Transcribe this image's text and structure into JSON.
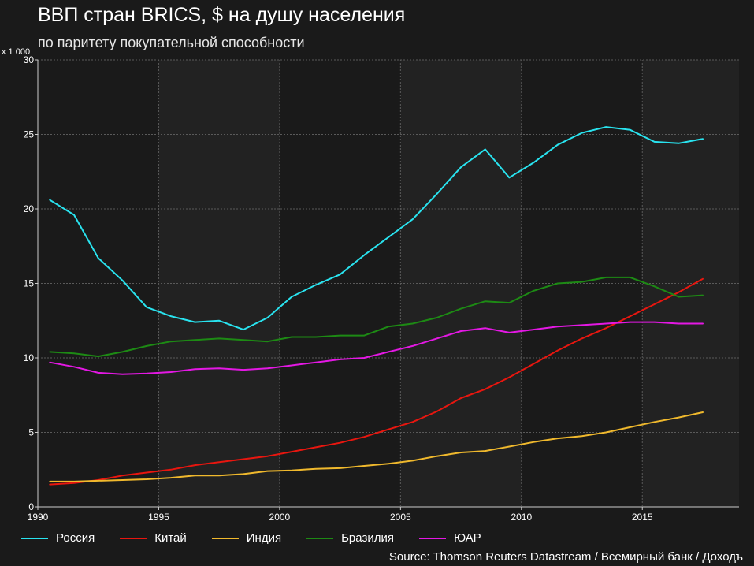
{
  "title": "ВВП стран BRICS, $ на душу населения",
  "subtitle": "по паритету покупательной способности",
  "source": "Source: Thomson Reuters Datastream / Всемирный банк / Доходъ",
  "colors": {
    "background": "#1a1a1a",
    "band": "#222222",
    "grid": "#5a5a5a",
    "axis": "#cccccc"
  },
  "chart_data": {
    "type": "line",
    "unit_label": "x 1 000",
    "xlim": [
      1990,
      2019
    ],
    "ylim": [
      0,
      30
    ],
    "x_ticks": [
      1990,
      1995,
      2000,
      2005,
      2010,
      2015
    ],
    "y_ticks": [
      0,
      5,
      10,
      15,
      20,
      25,
      30
    ],
    "grid": true,
    "legend_position": "bottom",
    "x": [
      1990.5,
      1991.5,
      1992.5,
      1993.5,
      1994.5,
      1995.5,
      1996.5,
      1997.5,
      1998.5,
      1999.5,
      2000.5,
      2001.5,
      2002.5,
      2003.5,
      2004.5,
      2005.5,
      2006.5,
      2007.5,
      2008.5,
      2009.5,
      2010.5,
      2011.5,
      2012.5,
      2013.5,
      2014.5,
      2015.5,
      2016.5,
      2017.5
    ],
    "series": [
      {
        "name": "Россия",
        "color": "#29e3ef",
        "values": [
          20.6,
          19.6,
          16.7,
          15.2,
          13.4,
          12.8,
          12.4,
          12.5,
          11.9,
          12.7,
          14.1,
          14.9,
          15.6,
          16.9,
          18.1,
          19.3,
          21.0,
          22.8,
          24.0,
          22.1,
          23.1,
          24.3,
          25.1,
          25.5,
          25.3,
          24.5,
          24.4,
          24.7
        ]
      },
      {
        "name": "Китай",
        "color": "#e8160f",
        "values": [
          1.5,
          1.6,
          1.8,
          2.1,
          2.3,
          2.5,
          2.8,
          3.0,
          3.2,
          3.4,
          3.7,
          4.0,
          4.3,
          4.7,
          5.2,
          5.7,
          6.4,
          7.3,
          7.9,
          8.7,
          9.6,
          10.5,
          11.3,
          12.0,
          12.8,
          13.6,
          14.4,
          15.3
        ]
      },
      {
        "name": "Индия",
        "color": "#f0b92d",
        "values": [
          1.7,
          1.7,
          1.75,
          1.8,
          1.85,
          1.95,
          2.1,
          2.1,
          2.2,
          2.4,
          2.45,
          2.55,
          2.6,
          2.75,
          2.9,
          3.1,
          3.4,
          3.65,
          3.75,
          4.05,
          4.35,
          4.6,
          4.75,
          5.0,
          5.35,
          5.7,
          6.0,
          6.35
        ]
      },
      {
        "name": "Бразилия",
        "color": "#1d8a14",
        "values": [
          10.4,
          10.3,
          10.1,
          10.4,
          10.8,
          11.1,
          11.2,
          11.3,
          11.2,
          11.1,
          11.4,
          11.4,
          11.5,
          11.5,
          12.1,
          12.3,
          12.7,
          13.3,
          13.8,
          13.7,
          14.5,
          15.0,
          15.1,
          15.4,
          15.4,
          14.8,
          14.1,
          14.2
        ]
      },
      {
        "name": "ЮАР",
        "color": "#e418e4",
        "values": [
          9.7,
          9.4,
          9.0,
          8.9,
          8.95,
          9.05,
          9.25,
          9.3,
          9.2,
          9.3,
          9.5,
          9.7,
          9.9,
          10.0,
          10.4,
          10.8,
          11.3,
          11.8,
          12.0,
          11.7,
          11.9,
          12.1,
          12.2,
          12.3,
          12.4,
          12.4,
          12.3,
          12.3
        ]
      }
    ]
  }
}
